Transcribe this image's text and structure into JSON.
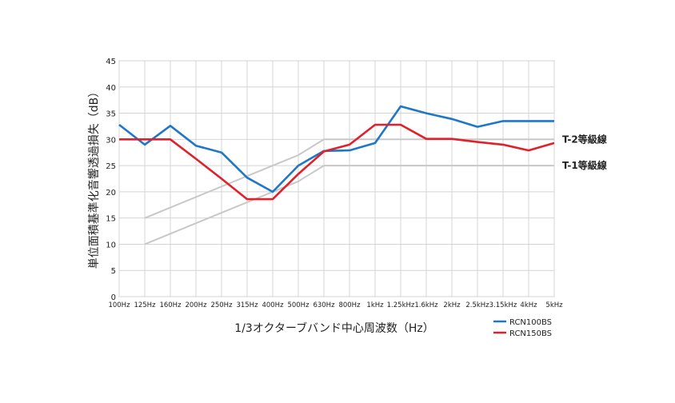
{
  "chart_data": {
    "type": "line",
    "title": "",
    "xlabel": "1/3オクターブバンド中心周波数（Hz）",
    "ylabel": "単位面積基準化音響透過損失（dB）",
    "ylim": [
      0,
      45
    ],
    "yticks": [
      0,
      5,
      10,
      15,
      20,
      25,
      30,
      35,
      40,
      45
    ],
    "grid": true,
    "legend_position": "bottom-right",
    "categories": [
      "100Hz",
      "125Hz",
      "160Hz",
      "200Hz",
      "250Hz",
      "315Hz",
      "400Hz",
      "500Hz",
      "630Hz",
      "800Hz",
      "1kHz",
      "1.25kHz",
      "1.6kHz",
      "2kHz",
      "2.5kHz",
      "3.15kHz",
      "4kHz",
      "5kHz"
    ],
    "series": [
      {
        "name": "RCN100BS",
        "color": "#1f77c8",
        "values": [
          32.8,
          29.0,
          32.6,
          28.8,
          27.5,
          22.7,
          20.0,
          25.0,
          27.8,
          27.9,
          29.3,
          36.3,
          35.0,
          33.9,
          32.4,
          33.5,
          33.5,
          33.5
        ]
      },
      {
        "name": "RCN150BS",
        "color": "#e0202a",
        "values": [
          30.0,
          30.0,
          30.0,
          26.3,
          22.5,
          18.6,
          18.6,
          23.4,
          27.7,
          29.0,
          32.8,
          32.8,
          30.1,
          30.1,
          29.5,
          29.0,
          27.9,
          29.3
        ]
      }
    ],
    "reference_lines": [
      {
        "name": "T-2等級線",
        "color": "#c8c8c8",
        "values": [
          null,
          15,
          17,
          19,
          21,
          23,
          25,
          27,
          30,
          30,
          30,
          30,
          30,
          30,
          30,
          30,
          30,
          30
        ]
      },
      {
        "name": "T-1等級線",
        "color": "#c8c8c8",
        "values": [
          null,
          10,
          12,
          14,
          16,
          18,
          20,
          22,
          25,
          25,
          25,
          25,
          25,
          25,
          25,
          25,
          25,
          25
        ]
      }
    ]
  }
}
